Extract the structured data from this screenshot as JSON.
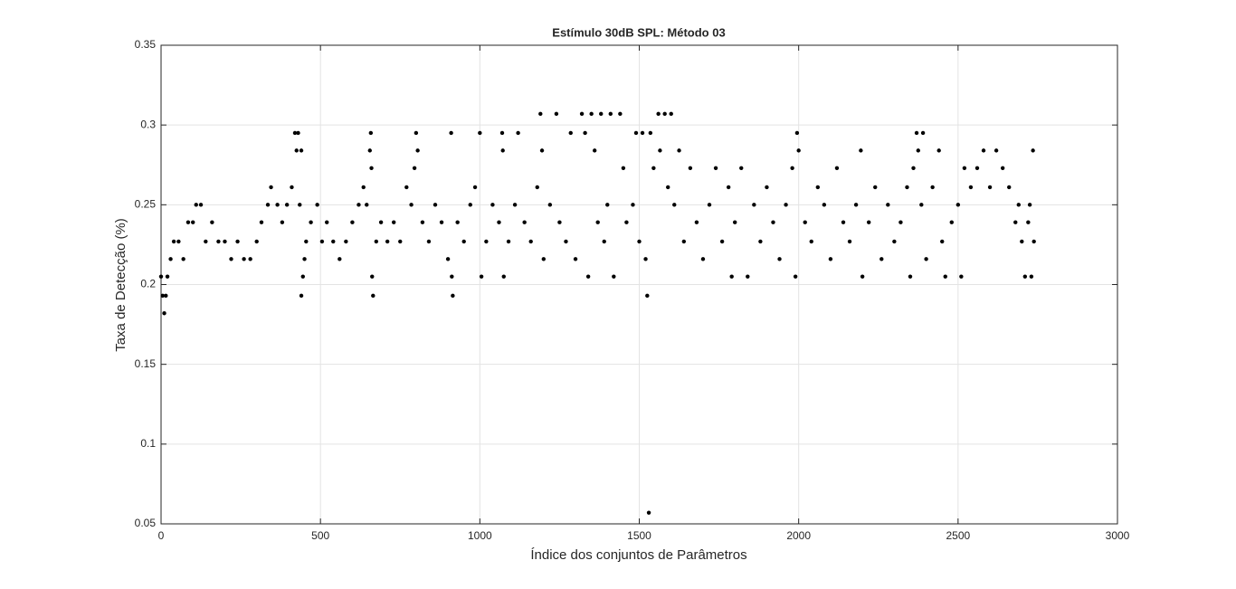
{
  "chart_data": {
    "type": "scatter",
    "title": "Estímulo 30dB SPL: Método 03",
    "xlabel": "Índice dos conjuntos de Parâmetros",
    "ylabel": "Taxa de Detecção (%)",
    "color": "#000000",
    "grid": true,
    "xlim": [
      0,
      3000
    ],
    "xticks": [
      0,
      500,
      1000,
      1500,
      2000,
      2500,
      3000
    ],
    "ylim": [
      0.05,
      0.35
    ],
    "yticks": [
      0.05,
      0.1,
      0.15,
      0.2,
      0.25,
      0.3,
      0.35
    ],
    "x": [
      0,
      5,
      10,
      15,
      20,
      30,
      40,
      55,
      70,
      85,
      100,
      110,
      125,
      140,
      160,
      180,
      200,
      220,
      240,
      260,
      280,
      300,
      315,
      335,
      345,
      365,
      380,
      395,
      410,
      420,
      425,
      430,
      435,
      440,
      440,
      445,
      450,
      455,
      470,
      490,
      505,
      520,
      540,
      560,
      580,
      600,
      620,
      635,
      645,
      655,
      658,
      660,
      662,
      665,
      675,
      690,
      710,
      730,
      750,
      770,
      785,
      795,
      800,
      805,
      820,
      840,
      860,
      880,
      900,
      910,
      912,
      915,
      930,
      950,
      970,
      985,
      1000,
      1005,
      1020,
      1040,
      1060,
      1070,
      1072,
      1075,
      1090,
      1110,
      1120,
      1140,
      1160,
      1180,
      1190,
      1195,
      1200,
      1220,
      1240,
      1250,
      1270,
      1285,
      1300,
      1320,
      1330,
      1340,
      1350,
      1360,
      1370,
      1380,
      1390,
      1400,
      1410,
      1420,
      1440,
      1450,
      1460,
      1480,
      1490,
      1500,
      1510,
      1520,
      1525,
      1530,
      1535,
      1545,
      1560,
      1565,
      1580,
      1590,
      1600,
      1610,
      1625,
      1640,
      1660,
      1680,
      1700,
      1720,
      1740,
      1760,
      1780,
      1790,
      1800,
      1820,
      1840,
      1860,
      1880,
      1900,
      1920,
      1940,
      1960,
      1980,
      1990,
      1995,
      2000,
      2020,
      2040,
      2060,
      2080,
      2100,
      2120,
      2140,
      2160,
      2180,
      2195,
      2200,
      2220,
      2240,
      2260,
      2280,
      2300,
      2320,
      2340,
      2350,
      2360,
      2370,
      2375,
      2385,
      2390,
      2400,
      2420,
      2440,
      2450,
      2460,
      2480,
      2500,
      2510,
      2520,
      2540,
      2560,
      2580,
      2600,
      2620,
      2640,
      2660,
      2680,
      2690,
      2700,
      2710,
      2720,
      2725,
      2730,
      2735,
      2738
    ],
    "values": [
      0.205,
      0.193,
      0.182,
      0.193,
      0.205,
      0.216,
      0.227,
      0.227,
      0.216,
      0.239,
      0.239,
      0.25,
      0.25,
      0.227,
      0.239,
      0.227,
      0.227,
      0.216,
      0.227,
      0.216,
      0.216,
      0.227,
      0.239,
      0.25,
      0.261,
      0.25,
      0.239,
      0.25,
      0.261,
      0.295,
      0.284,
      0.295,
      0.25,
      0.284,
      0.193,
      0.205,
      0.216,
      0.227,
      0.239,
      0.25,
      0.227,
      0.239,
      0.227,
      0.216,
      0.227,
      0.239,
      0.25,
      0.261,
      0.25,
      0.284,
      0.295,
      0.273,
      0.205,
      0.193,
      0.227,
      0.239,
      0.227,
      0.239,
      0.227,
      0.261,
      0.25,
      0.273,
      0.295,
      0.284,
      0.239,
      0.227,
      0.25,
      0.239,
      0.216,
      0.295,
      0.205,
      0.193,
      0.239,
      0.227,
      0.25,
      0.261,
      0.295,
      0.205,
      0.227,
      0.25,
      0.239,
      0.295,
      0.284,
      0.205,
      0.227,
      0.25,
      0.295,
      0.239,
      0.227,
      0.261,
      0.307,
      0.284,
      0.216,
      0.25,
      0.307,
      0.239,
      0.227,
      0.295,
      0.216,
      0.307,
      0.295,
      0.205,
      0.307,
      0.284,
      0.239,
      0.307,
      0.227,
      0.25,
      0.307,
      0.205,
      0.307,
      0.273,
      0.239,
      0.25,
      0.295,
      0.227,
      0.295,
      0.216,
      0.193,
      0.057,
      0.295,
      0.273,
      0.307,
      0.284,
      0.307,
      0.261,
      0.307,
      0.25,
      0.284,
      0.227,
      0.273,
      0.239,
      0.216,
      0.25,
      0.273,
      0.227,
      0.261,
      0.205,
      0.239,
      0.273,
      0.205,
      0.25,
      0.227,
      0.261,
      0.239,
      0.216,
      0.25,
      0.273,
      0.205,
      0.295,
      0.284,
      0.239,
      0.227,
      0.261,
      0.25,
      0.216,
      0.273,
      0.239,
      0.227,
      0.25,
      0.284,
      0.205,
      0.239,
      0.261,
      0.216,
      0.25,
      0.227,
      0.239,
      0.261,
      0.205,
      0.273,
      0.295,
      0.284,
      0.25,
      0.295,
      0.216,
      0.261,
      0.284,
      0.227,
      0.205,
      0.239,
      0.25,
      0.205,
      0.273,
      0.261,
      0.273,
      0.284,
      0.261,
      0.284,
      0.273,
      0.261,
      0.239,
      0.25,
      0.227,
      0.205,
      0.239,
      0.25,
      0.205,
      0.284,
      0.227
    ]
  }
}
